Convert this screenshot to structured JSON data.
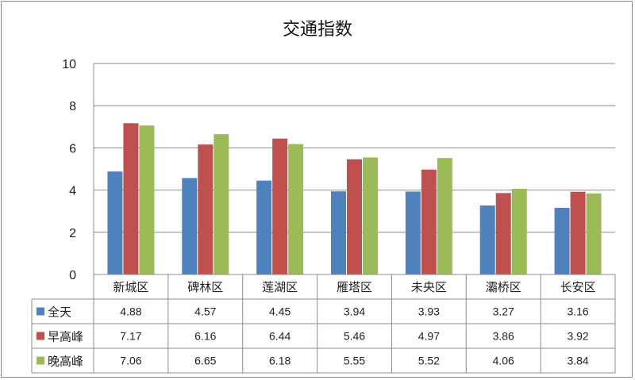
{
  "chart_data": {
    "type": "bar",
    "title": "交通指数",
    "categories": [
      "新城区",
      "碑林区",
      "莲湖区",
      "雁塔区",
      "未央区",
      "灞桥区",
      "长安区"
    ],
    "series": [
      {
        "name": "全天",
        "values": [
          4.88,
          4.57,
          4.45,
          3.94,
          3.93,
          3.27,
          3.16
        ]
      },
      {
        "name": "早高峰",
        "values": [
          7.17,
          6.16,
          6.44,
          5.46,
          4.97,
          3.86,
          3.92
        ]
      },
      {
        "name": "晚高峰",
        "values": [
          7.06,
          6.65,
          6.18,
          5.55,
          5.52,
          4.06,
          3.84
        ]
      }
    ],
    "ylim": [
      0,
      10
    ],
    "yticks": [
      0,
      2,
      4,
      6,
      8,
      10
    ],
    "grid": true,
    "data_table": true,
    "colors": [
      "#4f81bd",
      "#c0504d",
      "#9bbb59"
    ]
  }
}
